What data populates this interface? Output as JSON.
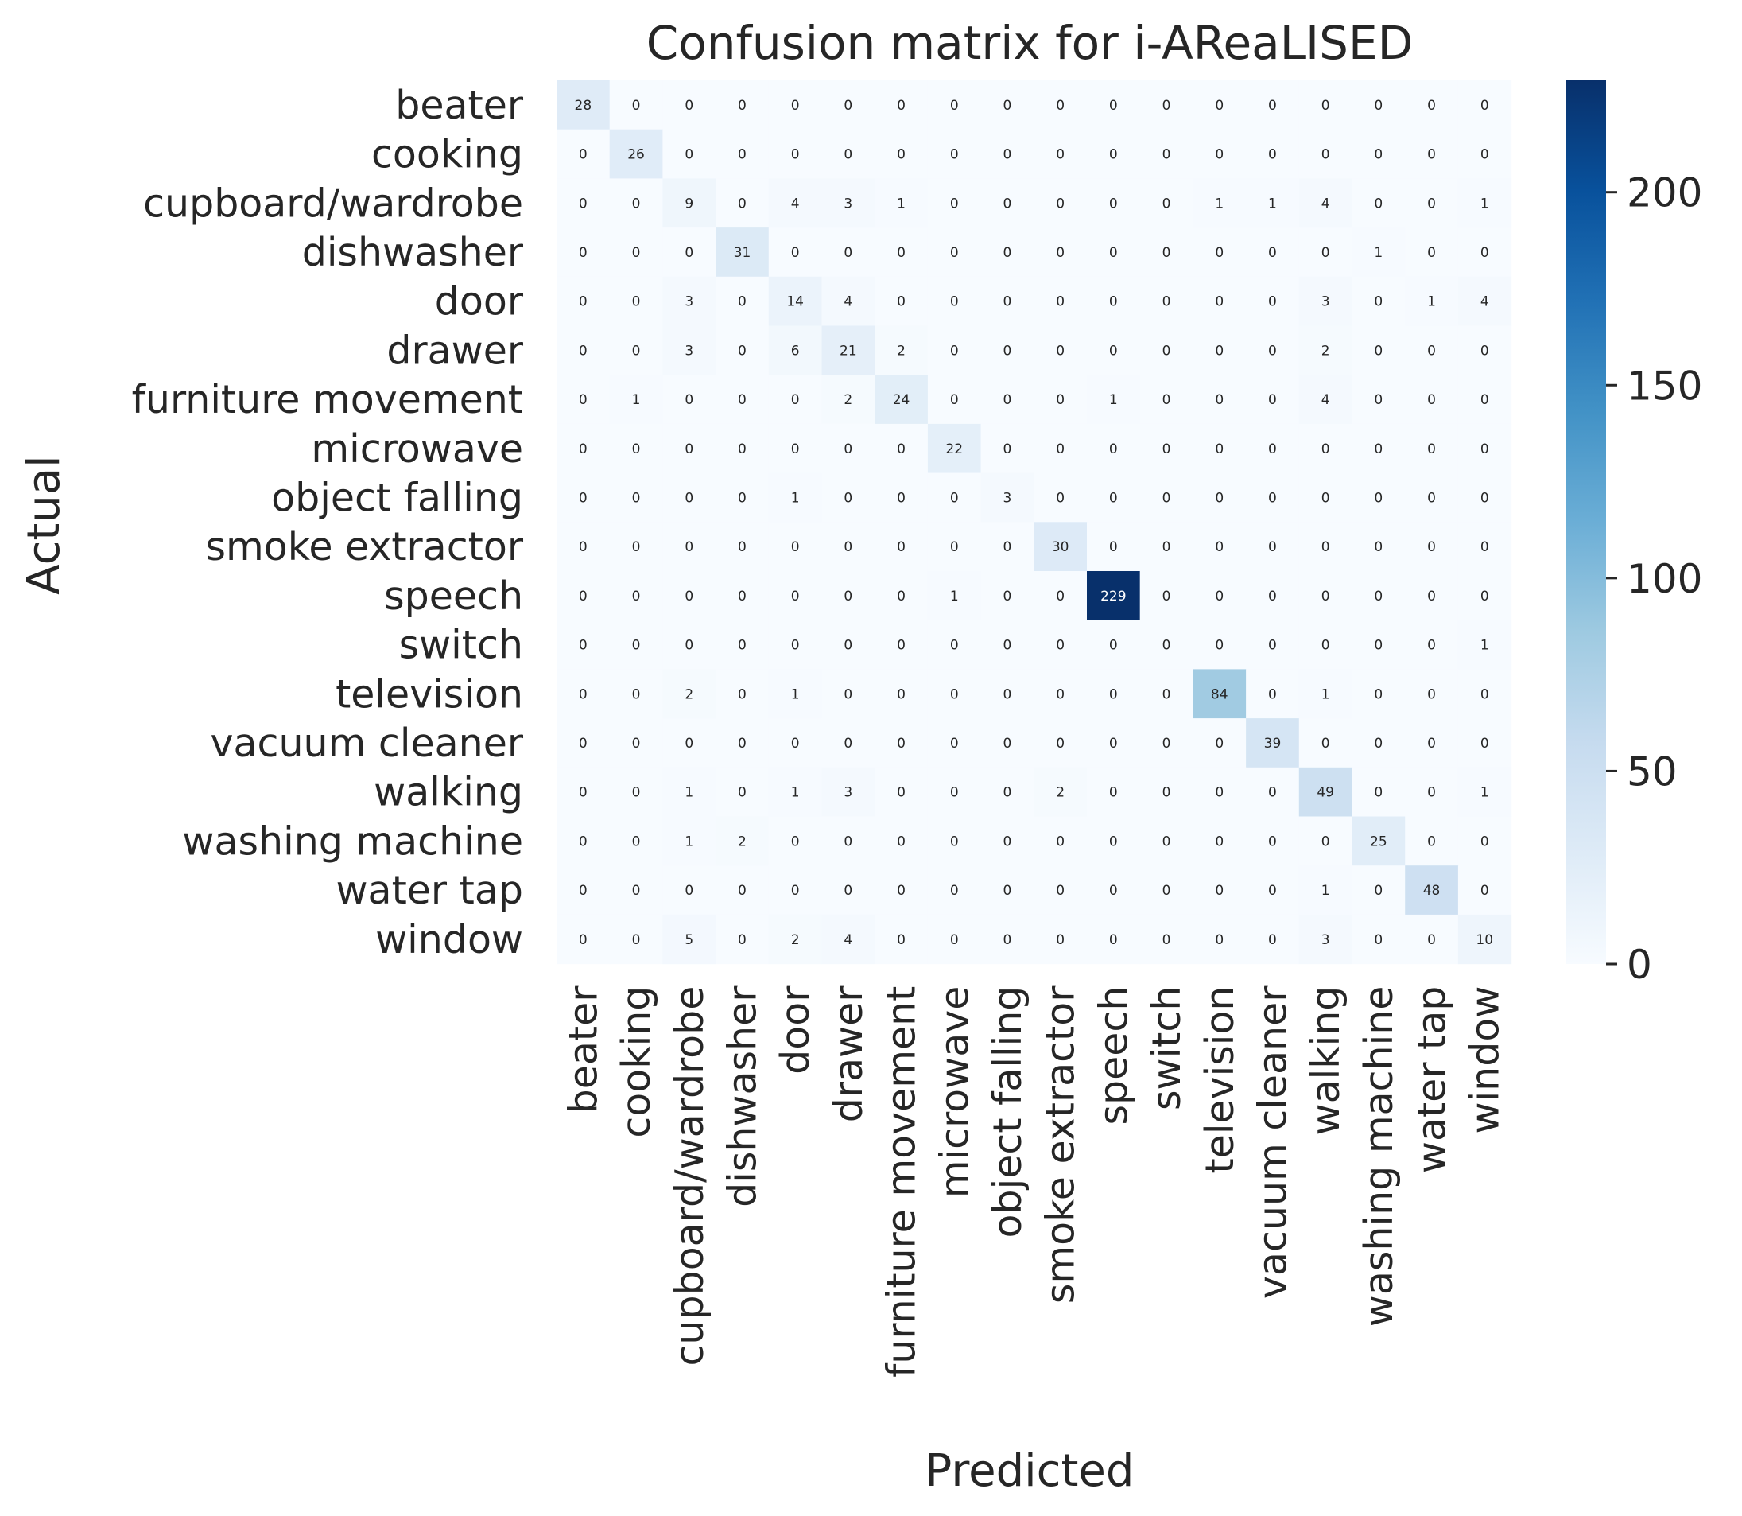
{
  "chart_data": {
    "type": "heatmap",
    "title": "Confusion matrix for i-AReaLISED",
    "xlabel": "Predicted",
    "ylabel": "Actual",
    "categories": [
      "beater",
      "cooking",
      "cupboard/wardrobe",
      "dishwasher",
      "door",
      "drawer",
      "furniture movement",
      "microwave",
      "object falling",
      "smoke extractor",
      "speech",
      "switch",
      "television",
      "vacuum cleaner",
      "walking",
      "washing machine",
      "water tap",
      "window"
    ],
    "matrix": [
      [
        28,
        0,
        0,
        0,
        0,
        0,
        0,
        0,
        0,
        0,
        0,
        0,
        0,
        0,
        0,
        0,
        0,
        0
      ],
      [
        0,
        26,
        0,
        0,
        0,
        0,
        0,
        0,
        0,
        0,
        0,
        0,
        0,
        0,
        0,
        0,
        0,
        0
      ],
      [
        0,
        0,
        9,
        0,
        4,
        3,
        1,
        0,
        0,
        0,
        0,
        0,
        1,
        1,
        4,
        0,
        0,
        1
      ],
      [
        0,
        0,
        0,
        31,
        0,
        0,
        0,
        0,
        0,
        0,
        0,
        0,
        0,
        0,
        0,
        1,
        0,
        0
      ],
      [
        0,
        0,
        3,
        0,
        14,
        4,
        0,
        0,
        0,
        0,
        0,
        0,
        0,
        0,
        3,
        0,
        1,
        4
      ],
      [
        0,
        0,
        3,
        0,
        6,
        21,
        2,
        0,
        0,
        0,
        0,
        0,
        0,
        0,
        2,
        0,
        0,
        0
      ],
      [
        0,
        1,
        0,
        0,
        0,
        2,
        24,
        0,
        0,
        0,
        1,
        0,
        0,
        0,
        4,
        0,
        0,
        0
      ],
      [
        0,
        0,
        0,
        0,
        0,
        0,
        0,
        22,
        0,
        0,
        0,
        0,
        0,
        0,
        0,
        0,
        0,
        0
      ],
      [
        0,
        0,
        0,
        0,
        1,
        0,
        0,
        0,
        3,
        0,
        0,
        0,
        0,
        0,
        0,
        0,
        0,
        0
      ],
      [
        0,
        0,
        0,
        0,
        0,
        0,
        0,
        0,
        0,
        30,
        0,
        0,
        0,
        0,
        0,
        0,
        0,
        0
      ],
      [
        0,
        0,
        0,
        0,
        0,
        0,
        0,
        1,
        0,
        0,
        229,
        0,
        0,
        0,
        0,
        0,
        0,
        0
      ],
      [
        0,
        0,
        0,
        0,
        0,
        0,
        0,
        0,
        0,
        0,
        0,
        0,
        0,
        0,
        0,
        0,
        0,
        1
      ],
      [
        0,
        0,
        2,
        0,
        1,
        0,
        0,
        0,
        0,
        0,
        0,
        0,
        84,
        0,
        1,
        0,
        0,
        0
      ],
      [
        0,
        0,
        0,
        0,
        0,
        0,
        0,
        0,
        0,
        0,
        0,
        0,
        0,
        39,
        0,
        0,
        0,
        0
      ],
      [
        0,
        0,
        1,
        0,
        1,
        3,
        0,
        0,
        0,
        2,
        0,
        0,
        0,
        0,
        49,
        0,
        0,
        1
      ],
      [
        0,
        0,
        1,
        2,
        0,
        0,
        0,
        0,
        0,
        0,
        0,
        0,
        0,
        0,
        0,
        25,
        0,
        0
      ],
      [
        0,
        0,
        0,
        0,
        0,
        0,
        0,
        0,
        0,
        0,
        0,
        0,
        0,
        0,
        1,
        0,
        48,
        0
      ],
      [
        0,
        0,
        5,
        0,
        2,
        4,
        0,
        0,
        0,
        0,
        0,
        0,
        0,
        0,
        3,
        0,
        0,
        10
      ]
    ],
    "colorbar": {
      "range": [
        0,
        229
      ],
      "ticks": [
        0,
        50,
        100,
        150,
        200
      ],
      "colormap": "Blues",
      "colors": [
        "#f7fbff",
        "#deebf7",
        "#c6dbef",
        "#9ecae1",
        "#6baed6",
        "#4292c6",
        "#2171b5",
        "#08519c",
        "#08306b"
      ]
    },
    "grid": false,
    "legend": "colorbar-right"
  }
}
